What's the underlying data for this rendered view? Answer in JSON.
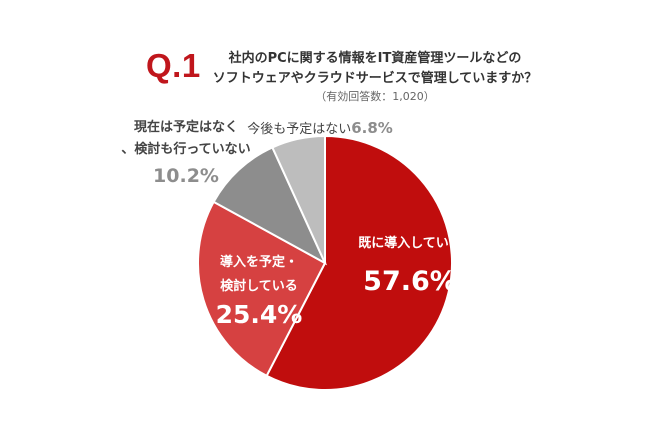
{
  "header": {
    "q_label": "Q.1",
    "question_line1": "社内のPCに関する情報をIT資産管理ツールなどの",
    "question_line2": "ソフトウェアやクラウドサービスで管理していますか？",
    "note": "（有効回答数：1,020）"
  },
  "chart_data": {
    "type": "pie",
    "unit": "%",
    "slices": [
      {
        "label": "既に導入している",
        "value": 57.6,
        "value_label": "57.6%",
        "color": "#c00d0d"
      },
      {
        "label": "導入を予定・検討している",
        "value": 25.4,
        "value_label": "25.4%",
        "color": "#d64141"
      },
      {
        "label": "現在は予定はなく、検討も行っていない",
        "value": 10.2,
        "value_label": "10.2%",
        "color": "#8d8d8d"
      },
      {
        "label": "今後も予定はない",
        "value": 6.8,
        "value_label": "6.8%",
        "color": "#bdbdbd"
      }
    ]
  }
}
